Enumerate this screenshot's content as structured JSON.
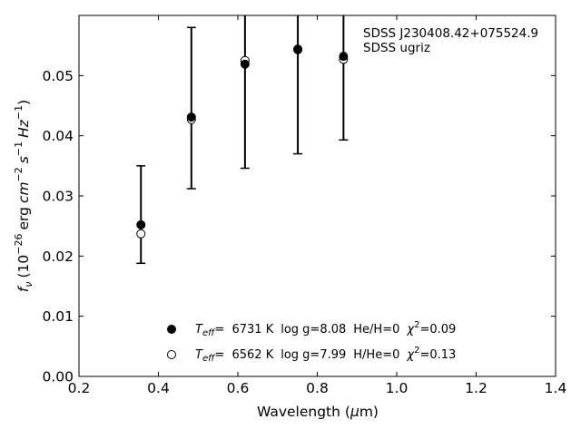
{
  "chart_data": {
    "type": "scatter",
    "annotations": [
      "SDSS J230408.42+075524.9",
      "SDSS ugriz"
    ],
    "xlabel": "Wavelength (μm)",
    "ylabel": "f_ν (10^−26 erg cm^−2 s^−1 Hz^−1)",
    "xlim": [
      0.2,
      1.4
    ],
    "ylim": [
      0.0,
      0.06
    ],
    "x_ticks": [
      0.2,
      0.4,
      0.6,
      0.8,
      1.0,
      1.2,
      1.4
    ],
    "x_tick_labels": [
      "0.2",
      "0.4",
      "0.6",
      "0.8",
      "1.0",
      "1.2",
      "1.4"
    ],
    "y_ticks": [
      0.0,
      0.01,
      0.02,
      0.03,
      0.04,
      0.05
    ],
    "y_tick_labels": [
      "0.00",
      "0.01",
      "0.02",
      "0.03",
      "0.04",
      "0.05"
    ],
    "grid": false,
    "legend_placement": "bottom-center",
    "observed": {
      "x": [
        0.356,
        0.483,
        0.618,
        0.751,
        0.866
      ],
      "y_low": [
        0.0188,
        0.0312,
        0.0346,
        0.037,
        0.0393
      ],
      "y_high": [
        0.035,
        0.058,
        0.06,
        0.06,
        0.06
      ]
    },
    "series": [
      {
        "name": "T_eff= 6731 K log g=8.08 He/H=0 χ2=0.09",
        "marker": "filled-circle",
        "x": [
          0.356,
          0.483,
          0.618,
          0.751,
          0.866
        ],
        "y": [
          0.0252,
          0.0431,
          0.0519,
          0.0543,
          0.0532
        ]
      },
      {
        "name": "T_eff= 6562 K log g=7.99 H/He=0 χ2=0.13",
        "marker": "open-circle",
        "x": [
          0.356,
          0.483,
          0.618,
          0.751,
          0.866
        ],
        "y": [
          0.0237,
          0.0427,
          0.0525,
          0.0544,
          0.0527
        ]
      }
    ],
    "legend": [
      {
        "marker": "filled-circle",
        "teff_label": "T",
        "teff_sub": "eff",
        "teff_value": "=  6731 K",
        "logg": "log g=8.08",
        "composition": "He/H=0",
        "chi_symbol": "χ",
        "chi_sup": "2",
        "chi_value": "=0.09"
      },
      {
        "marker": "open-circle",
        "teff_label": "T",
        "teff_sub": "eff",
        "teff_value": "=  6562 K",
        "logg": "log g=7.99",
        "composition": "H/He=0",
        "chi_symbol": "χ",
        "chi_sup": "2",
        "chi_value": "=0.13"
      }
    ],
    "ylabel_parts": {
      "f": "f",
      "nu": "ν",
      "open": "(10",
      "exp1": "−26",
      "erg": "erg",
      "cm": "cm",
      "exp2": "−2",
      "s": "s",
      "exp3": "−1",
      "hz": "Hz",
      "exp4": "−1",
      "close": ")"
    },
    "xlabel_parts": {
      "text": "Wavelength (",
      "mu": "μ",
      "unit": "m",
      "close": ")"
    }
  }
}
